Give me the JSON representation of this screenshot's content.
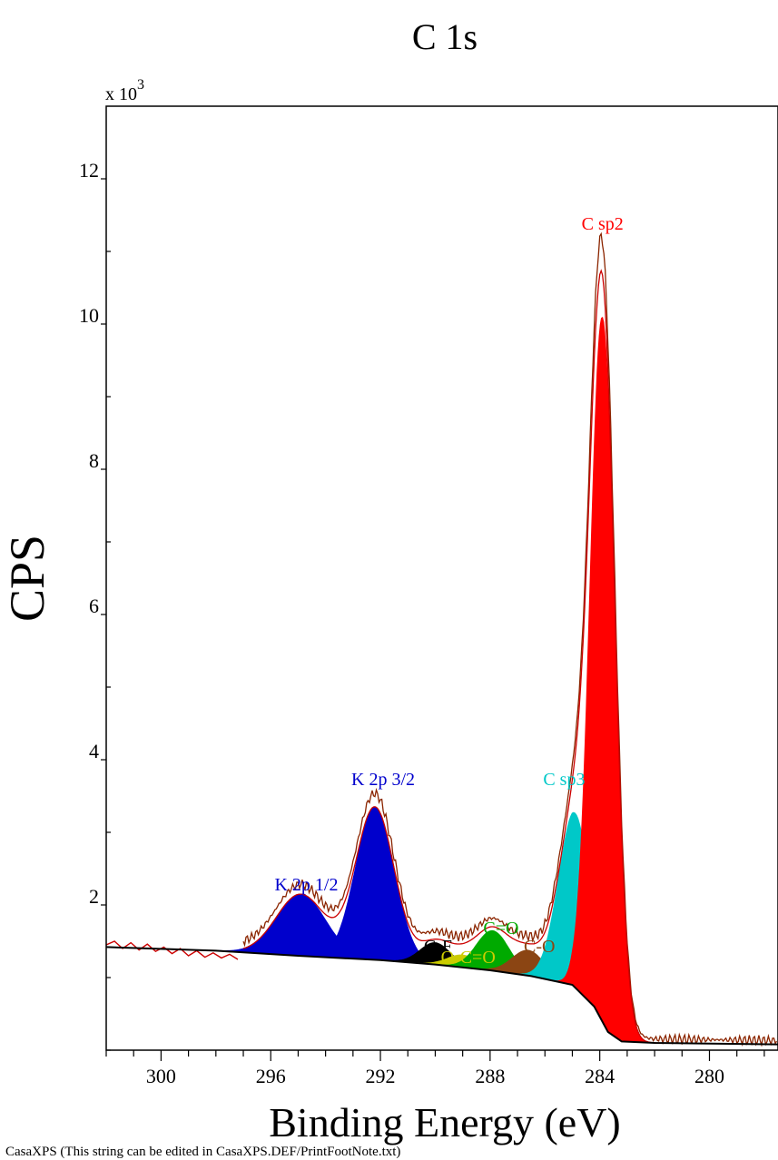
{
  "chart_data": {
    "type": "area",
    "title": "C 1s",
    "xlabel": "Binding Energy (eV)",
    "ylabel": "CPS",
    "y_multiplier": "x 10",
    "y_multiplier_exp": "3",
    "footnote": "CasaXPS (This string can be edited in CasaXPS.DEF/PrintFootNote.txt)",
    "xlim": [
      302,
      277.5
    ],
    "ylim": [
      0,
      13
    ],
    "x_reversed": true,
    "x_ticks": [
      300,
      296,
      292,
      288,
      284,
      280
    ],
    "y_ticks": [
      2,
      4,
      6,
      8,
      10,
      12
    ],
    "background": [
      [
        302,
        1.42
      ],
      [
        298,
        1.37
      ],
      [
        295,
        1.3
      ],
      [
        292,
        1.24
      ],
      [
        290,
        1.18
      ],
      [
        288,
        1.1
      ],
      [
        286.5,
        1.02
      ],
      [
        285,
        0.9
      ],
      [
        284.2,
        0.6
      ],
      [
        283.7,
        0.25
      ],
      [
        283.2,
        0.12
      ],
      [
        282,
        0.1
      ],
      [
        277.5,
        0.08
      ]
    ],
    "components": [
      {
        "name": "K 2p 1/2",
        "center": 294.9,
        "height": 0.85,
        "fwhm": 2.1,
        "color": "#0000cc"
      },
      {
        "name": "K 2p 3/2",
        "center": 292.2,
        "height": 2.1,
        "fwhm": 1.65,
        "color": "#0000cc"
      },
      {
        "name": "C-F",
        "center": 290.0,
        "height": 0.3,
        "fwhm": 1.3,
        "color": "#000000"
      },
      {
        "name": "O-C=O",
        "center": 289.0,
        "height": 0.17,
        "fwhm": 1.3,
        "color": "#cccc00"
      },
      {
        "name": "C=O",
        "center": 287.9,
        "height": 0.55,
        "fwhm": 1.4,
        "color": "#00aa00"
      },
      {
        "name": "C-O",
        "center": 286.6,
        "height": 0.35,
        "fwhm": 1.4,
        "color": "#8b4513"
      },
      {
        "name": "C sp3",
        "center": 284.9,
        "height": 2.4,
        "fwhm": 1.4,
        "color": "#00c8c8"
      },
      {
        "name": "C sp2",
        "center": 283.9,
        "height": 9.7,
        "fwhm": 1.05,
        "color": "#ff0000"
      }
    ],
    "series": [
      {
        "name": "raw",
        "color": "#cc0000",
        "x": [
          302,
          301.7,
          301.4,
          301.1,
          300.8,
          300.5,
          300.2,
          299.9,
          299.6,
          299.3,
          299.0,
          298.7,
          298.4,
          298.1,
          297.8,
          297.5,
          297.2
        ],
        "y": [
          1.45,
          1.5,
          1.4,
          1.48,
          1.38,
          1.46,
          1.36,
          1.42,
          1.33,
          1.4,
          1.3,
          1.37,
          1.28,
          1.34,
          1.27,
          1.32,
          1.25
        ]
      }
    ],
    "labels": [
      {
        "text": "C sp2",
        "x": 283.9,
        "y": 11.3,
        "color": "#ff0000"
      },
      {
        "text": "K 2p 3/2",
        "x": 291.9,
        "y": 3.65,
        "color": "#0000cc"
      },
      {
        "text": "C sp3",
        "x": 285.3,
        "y": 3.65,
        "color": "#00c8c8"
      },
      {
        "text": "K 2p 1/2",
        "x": 294.7,
        "y": 2.2,
        "color": "#0000cc"
      },
      {
        "text": "C=O",
        "x": 287.6,
        "y": 1.6,
        "color": "#00aa00"
      },
      {
        "text": "C-F",
        "x": 289.9,
        "y": 1.35,
        "color": "#000000"
      },
      {
        "text": "O-C=O",
        "x": 288.8,
        "y": 1.2,
        "color": "#cccc00"
      },
      {
        "text": "C-O",
        "x": 286.2,
        "y": 1.35,
        "color": "#8b4513"
      }
    ]
  }
}
